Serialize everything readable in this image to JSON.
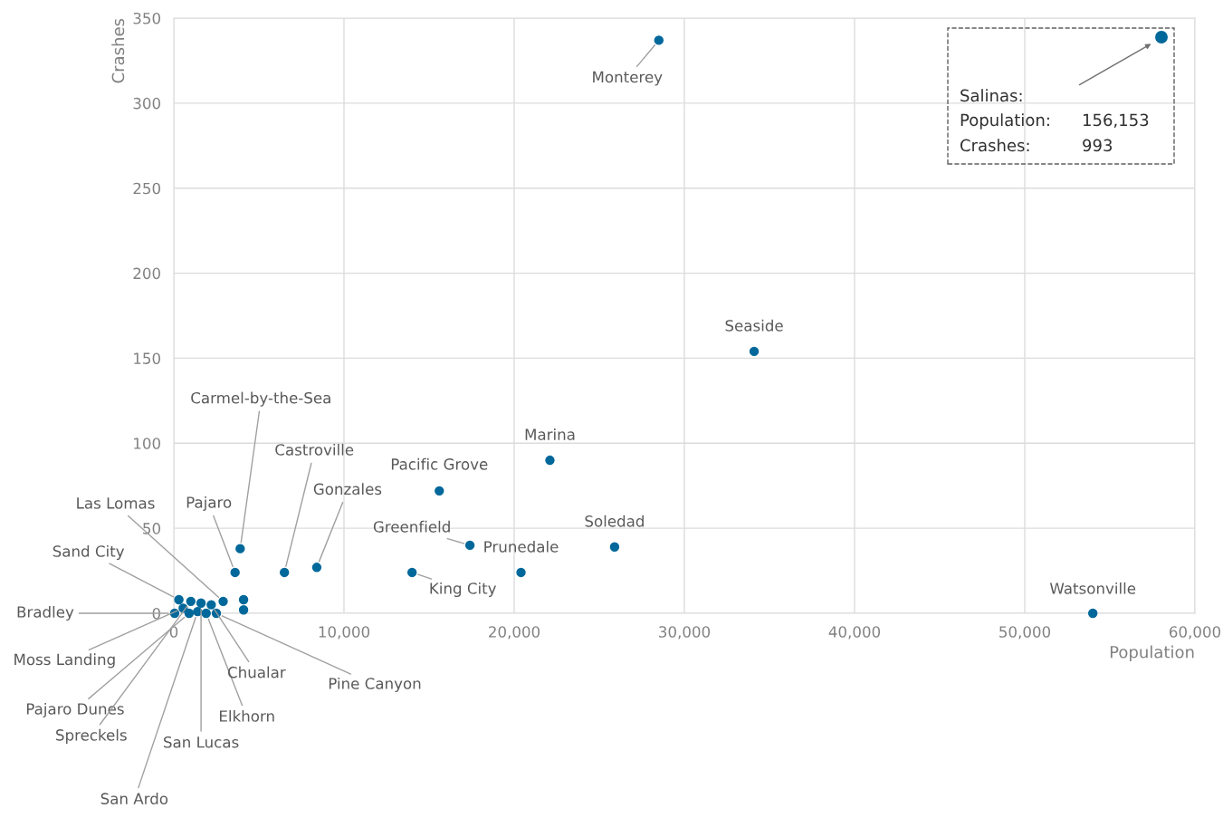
{
  "chart_data": {
    "type": "scatter",
    "xlabel": "Population",
    "ylabel": "Crashes",
    "xlim": [
      0,
      60000
    ],
    "ylim": [
      0,
      350
    ],
    "xticks": [
      {
        "value": 0,
        "label": "0"
      },
      {
        "value": 10000,
        "label": "10,000"
      },
      {
        "value": 20000,
        "label": "20,000"
      },
      {
        "value": 30000,
        "label": "30,000"
      },
      {
        "value": 40000,
        "label": "40,000"
      },
      {
        "value": 50000,
        "label": "50,000"
      },
      {
        "value": 60000,
        "label": "60,000"
      }
    ],
    "yticks": [
      0,
      50,
      100,
      150,
      200,
      250,
      300,
      350
    ],
    "grid": true,
    "marker": "circle",
    "series": [
      {
        "color": "#00689a",
        "x": [
          28500,
          34100,
          22100,
          15600,
          17400,
          20400,
          25900,
          14000,
          54000,
          3900,
          6500,
          8400,
          3600,
          2900,
          300,
          50,
          550,
          900,
          1000,
          1400,
          1600,
          1900,
          2200,
          2500,
          4100,
          4100
        ],
        "values": [
          337,
          154,
          90,
          72,
          40,
          24,
          39,
          24,
          0,
          38,
          24,
          27,
          24,
          7,
          8,
          0,
          3,
          0,
          7,
          1,
          6,
          0,
          5,
          0,
          8,
          2
        ]
      }
    ],
    "annotations": [
      {
        "text": "Monterey",
        "x": 28500,
        "y": 337
      },
      {
        "text": "Seaside",
        "x": 34100,
        "y": 154
      },
      {
        "text": "Marina",
        "x": 22100,
        "y": 90
      },
      {
        "text": "Pacific Grove",
        "x": 15600,
        "y": 72
      },
      {
        "text": "Greenfield",
        "x": 17400,
        "y": 40
      },
      {
        "text": "Prunedale",
        "x": 20400,
        "y": 24
      },
      {
        "text": "Soledad",
        "x": 25900,
        "y": 39
      },
      {
        "text": "King City",
        "x": 14000,
        "y": 24
      },
      {
        "text": "Watsonville",
        "x": 54000,
        "y": 0
      },
      {
        "text": "Carmel-by-the-Sea",
        "x": 3900,
        "y": 38
      },
      {
        "text": "Castroville",
        "x": 6500,
        "y": 24
      },
      {
        "text": "Gonzales",
        "x": 8400,
        "y": 27
      },
      {
        "text": "Pajaro",
        "x": 3600,
        "y": 24
      },
      {
        "text": "Las Lomas",
        "x": 2900,
        "y": 7
      },
      {
        "text": "Sand City",
        "x": 300,
        "y": 8
      },
      {
        "text": "Bradley",
        "x": 50,
        "y": 0
      },
      {
        "text": "Moss Landing",
        "x": 550,
        "y": 3
      },
      {
        "text": "Pajaro Dunes",
        "x": 900,
        "y": 0
      },
      {
        "text": "Spreckels",
        "x": 1000,
        "y": 7
      },
      {
        "text": "San Ardo",
        "x": 1400,
        "y": 1
      },
      {
        "text": "San Lucas",
        "x": 1600,
        "y": 6
      },
      {
        "text": "Elkhorn",
        "x": 1900,
        "y": 0
      },
      {
        "text": "Chualar",
        "x": 2200,
        "y": 5
      },
      {
        "text": "Pine Canyon",
        "x": 2500,
        "y": 0
      },
      "Salinas:",
      "Population:",
      "156,153",
      "Crashes:",
      "993"
    ]
  }
}
